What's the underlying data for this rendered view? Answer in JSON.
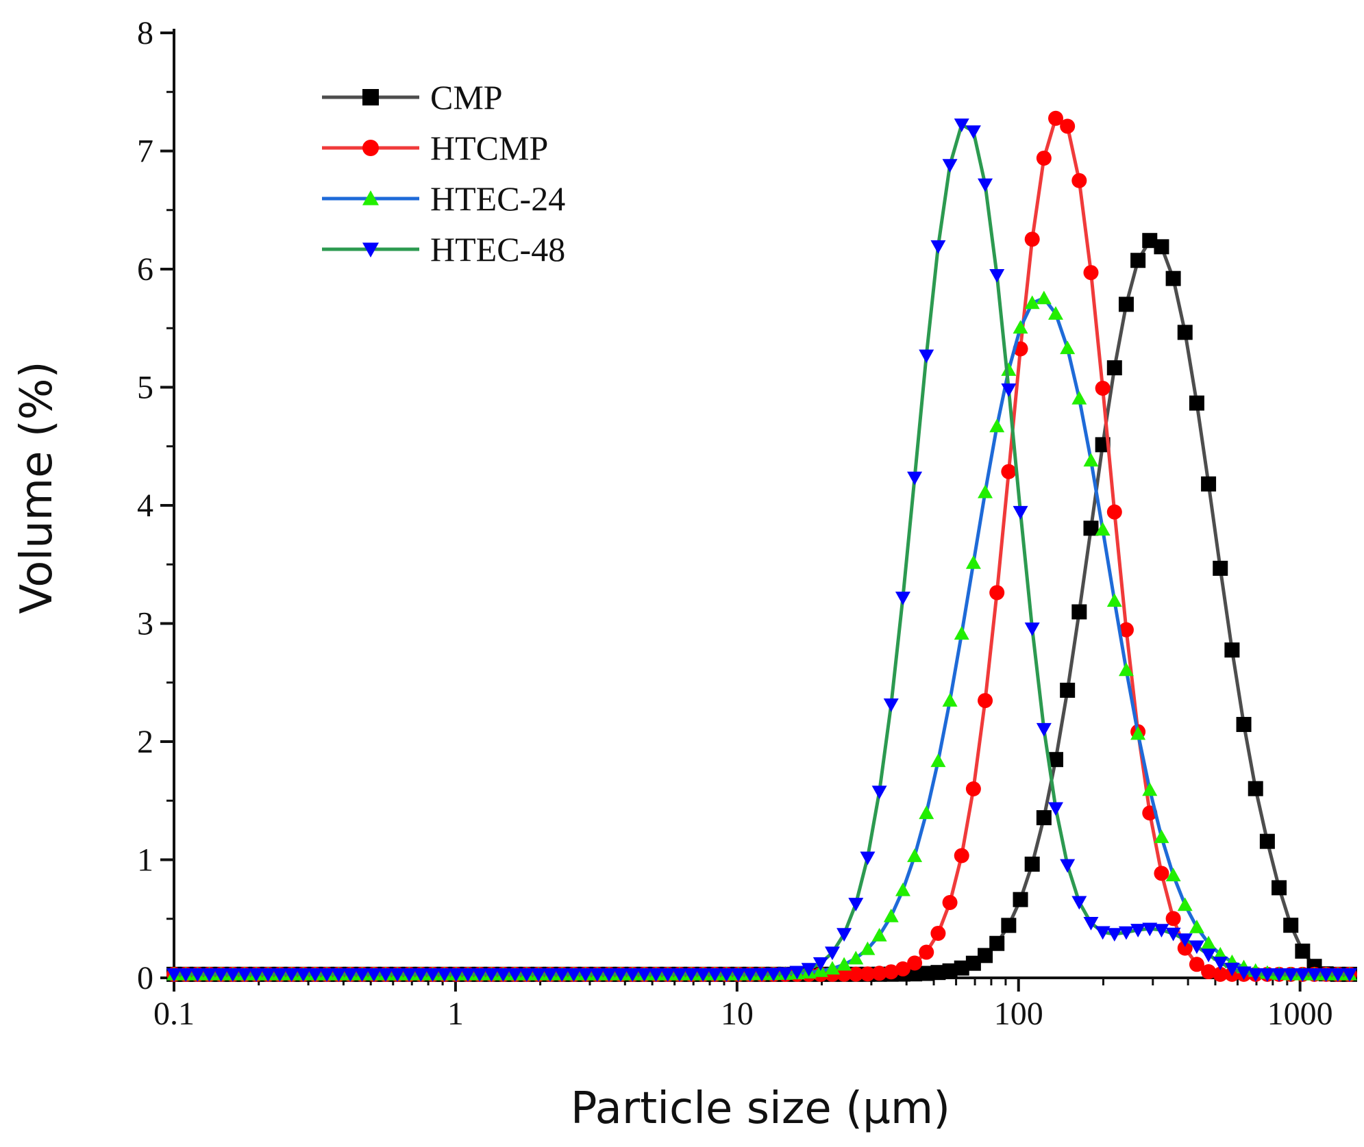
{
  "chart_data": {
    "type": "line",
    "title": "",
    "xlabel": "Particle size (μm)",
    "ylabel": "Volume (%)",
    "xscale": "log",
    "xlim": [
      0.1,
      1500
    ],
    "ylim": [
      0,
      8
    ],
    "x_ticks": [
      0.1,
      1,
      10,
      100,
      1000
    ],
    "x_tick_labels": [
      "0.1",
      "1",
      "10",
      "100",
      "1000"
    ],
    "y_ticks": [
      0,
      1,
      2,
      3,
      4,
      5,
      6,
      7,
      8
    ],
    "y_tick_labels": [
      "0",
      "1",
      "2",
      "3",
      "4",
      "5",
      "6",
      "7",
      "8"
    ],
    "grid": false,
    "legend_position": "top-left",
    "series": [
      {
        "name": "CMP",
        "color": "#4d4d4d",
        "marker": "square",
        "marker_color": "#000000",
        "peak_x": 300,
        "peak_y": 6.22,
        "sigma_decades": 0.22,
        "right_cutoff": 1250,
        "baseline": 0.03
      },
      {
        "name": "HTCMP",
        "color": "#f03a3a",
        "marker": "circle",
        "marker_color": "#ff0000",
        "peak_x": 140,
        "peak_y": 7.27,
        "sigma_decades": 0.175,
        "right_cutoff": 520,
        "baseline": 0.03
      },
      {
        "name": "HTEC-24",
        "color": "#1e6ad8",
        "marker": "triangle-up",
        "marker_color": "#22ee00",
        "peak_x": 120,
        "peak_y": 5.73,
        "sigma_decades": 0.24,
        "right_cutoff": 950,
        "baseline": 0.03
      },
      {
        "name": "HTEC-48",
        "color": "#2c9a50",
        "marker": "triangle-down",
        "marker_color": "#0000ff",
        "peak_x": 65,
        "peak_y": 7.22,
        "sigma_decades": 0.175,
        "shoulder_x": 300,
        "shoulder_y": 0.38,
        "shoulder_sigma": 0.16,
        "right_cutoff": 700,
        "baseline": 0.03
      }
    ]
  }
}
